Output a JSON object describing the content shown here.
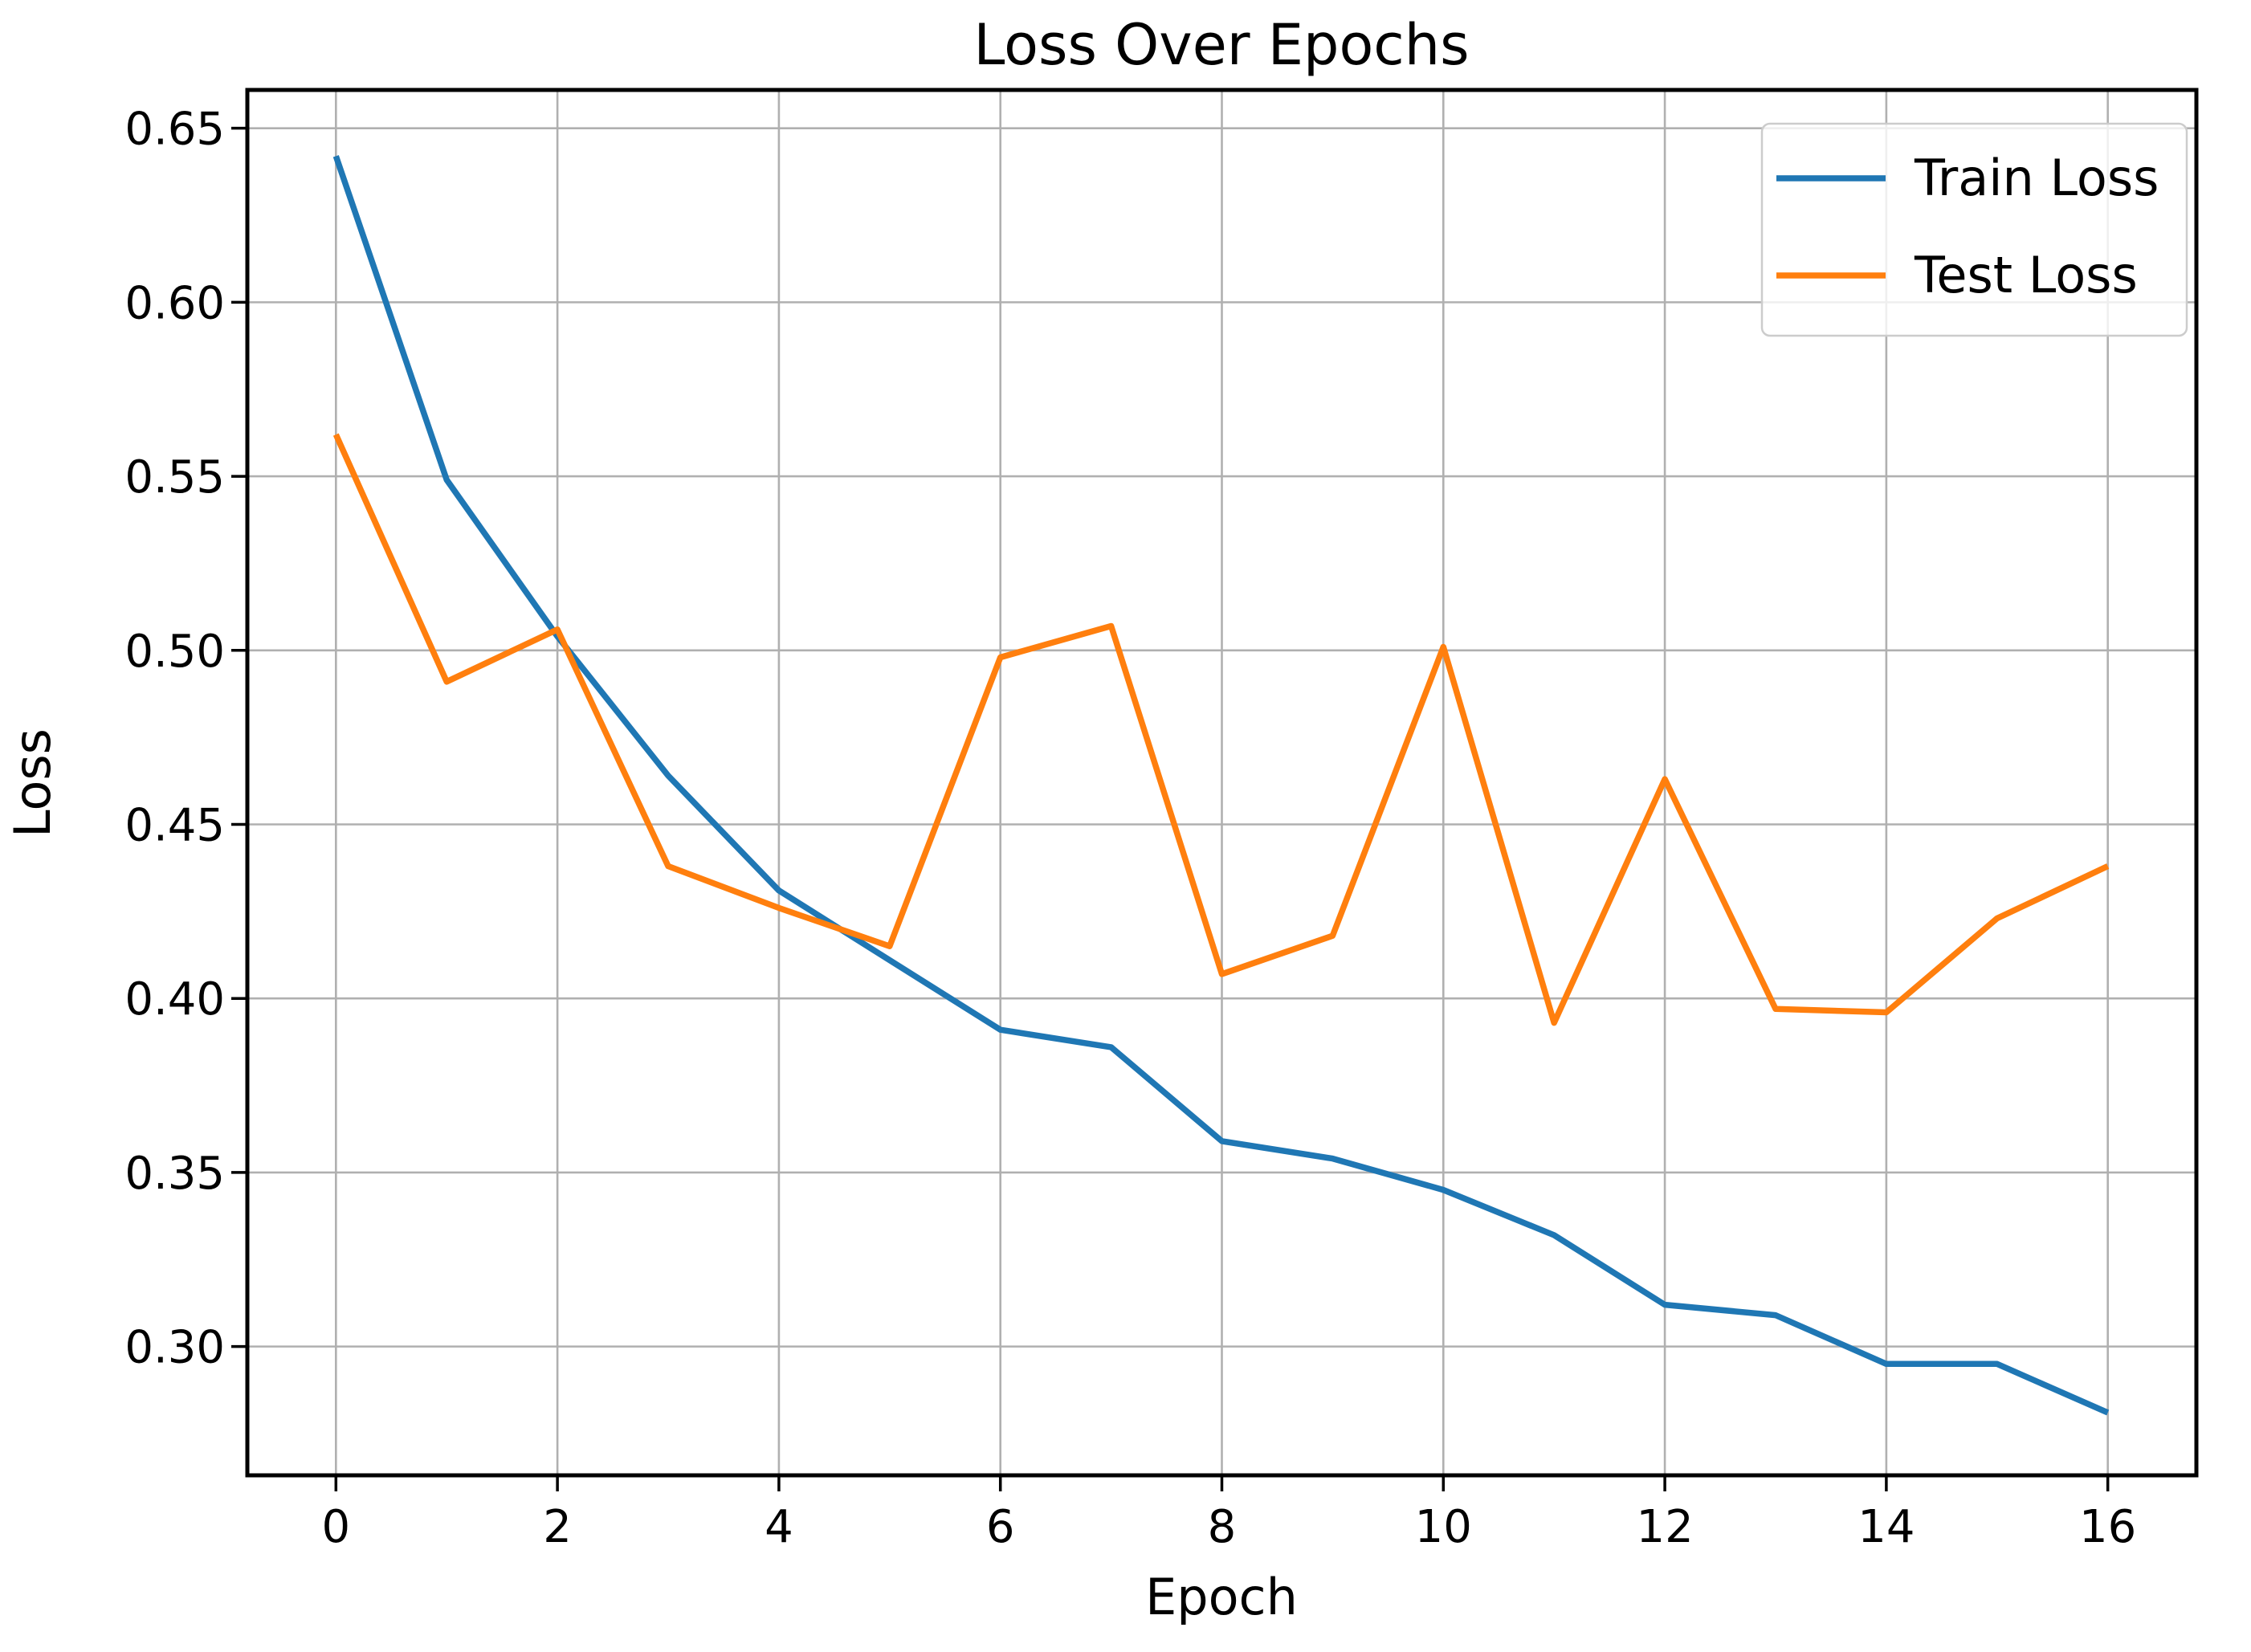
{
  "chart_data": {
    "type": "line",
    "title": "Loss Over Epochs",
    "xlabel": "Epoch",
    "ylabel": "Loss",
    "x": [
      0,
      1,
      2,
      3,
      4,
      5,
      6,
      7,
      8,
      9,
      10,
      11,
      12,
      13,
      14,
      15,
      16
    ],
    "series": [
      {
        "name": "Train Loss",
        "color": "#1f77b4",
        "values": [
          0.642,
          0.549,
          0.504,
          0.464,
          0.431,
          0.411,
          0.391,
          0.386,
          0.359,
          0.354,
          0.345,
          0.332,
          0.312,
          0.309,
          0.295,
          0.295,
          0.281
        ]
      },
      {
        "name": "Test Loss",
        "color": "#ff7f0e",
        "values": [
          0.562,
          0.491,
          0.506,
          0.438,
          0.426,
          0.415,
          0.498,
          0.507,
          0.407,
          0.418,
          0.501,
          0.393,
          0.463,
          0.397,
          0.396,
          0.423,
          0.438
        ]
      }
    ],
    "xlim": [
      -0.8,
      16.8
    ],
    "ylim": [
      0.263,
      0.661
    ],
    "xticks": [
      0,
      2,
      4,
      6,
      8,
      10,
      12,
      14,
      16
    ],
    "xtick_labels": [
      "0",
      "2",
      "4",
      "6",
      "8",
      "10",
      "12",
      "14",
      "16"
    ],
    "yticks": [
      0.3,
      0.35,
      0.4,
      0.45,
      0.5,
      0.55,
      0.6,
      0.65
    ],
    "ytick_labels": [
      "0.30",
      "0.35",
      "0.40",
      "0.45",
      "0.50",
      "0.55",
      "0.60",
      "0.65"
    ],
    "grid": true,
    "legend": {
      "position": "upper right",
      "entries": [
        "Train Loss",
        "Test Loss"
      ]
    },
    "colors": {
      "background": "#ffffff",
      "grid": "#b0b0b0",
      "spine": "#000000",
      "text": "#000000",
      "legend_border": "#cccccc",
      "legend_fill": "#ffffff"
    }
  }
}
